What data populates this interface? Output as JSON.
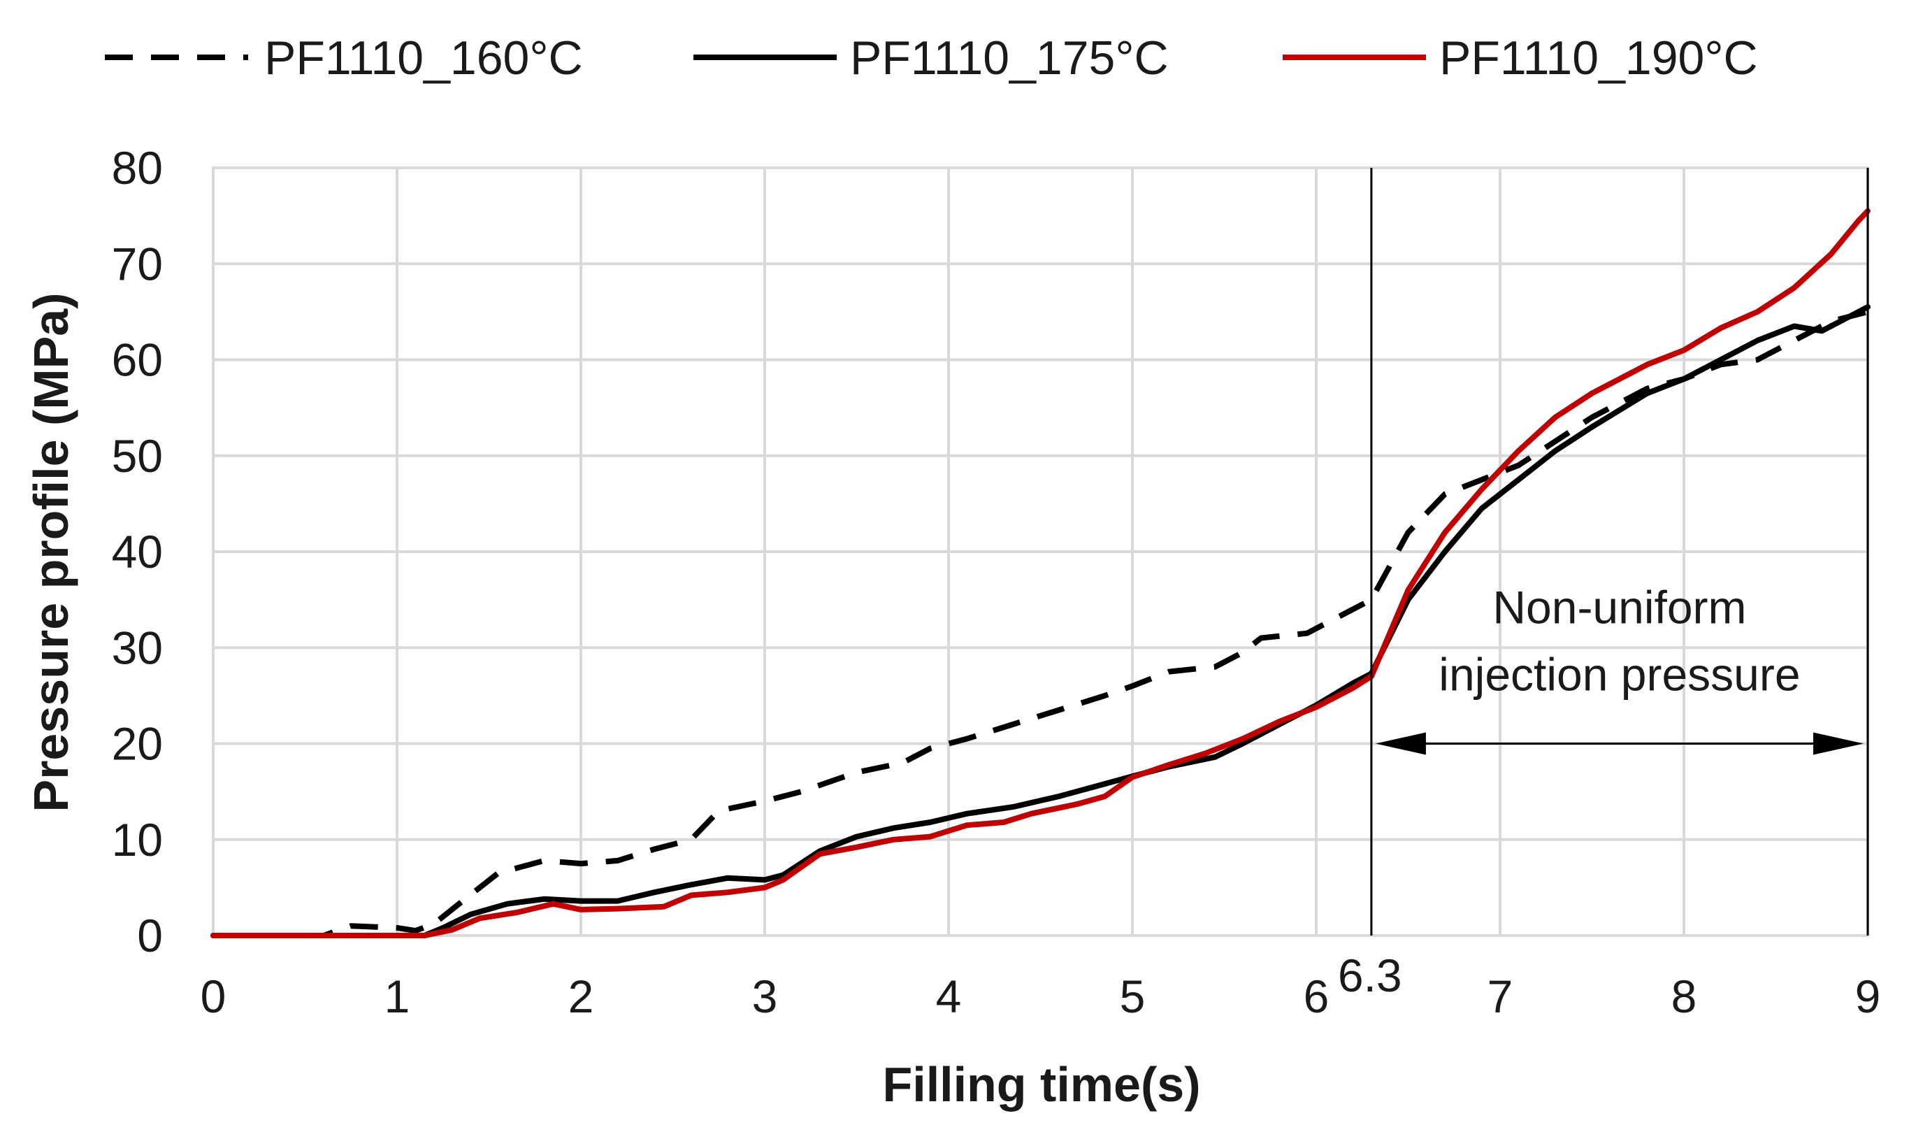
{
  "chart_data": {
    "type": "line",
    "title": "",
    "xlabel": "Filling time(s)",
    "ylabel": "Pressure profile (MPa)",
    "xlim": [
      0,
      9
    ],
    "ylim": [
      0,
      80
    ],
    "x_ticks": [
      0,
      1,
      2,
      3,
      4,
      5,
      6,
      7,
      8,
      9
    ],
    "y_ticks": [
      0,
      10,
      20,
      30,
      40,
      50,
      60,
      70,
      80
    ],
    "legend_position": "top",
    "series": [
      {
        "name": "PF1110_160°C",
        "style": "dashed",
        "color": "#000000",
        "points": [
          [
            0,
            0
          ],
          [
            0.6,
            0
          ],
          [
            0.75,
            1
          ],
          [
            1.0,
            0.8
          ],
          [
            1.1,
            0.5
          ],
          [
            1.2,
            1.2
          ],
          [
            1.35,
            3.5
          ],
          [
            1.55,
            6.5
          ],
          [
            1.8,
            7.8
          ],
          [
            2.0,
            7.5
          ],
          [
            2.2,
            7.8
          ],
          [
            2.4,
            9
          ],
          [
            2.6,
            10
          ],
          [
            2.75,
            13
          ],
          [
            3.0,
            14
          ],
          [
            3.2,
            15
          ],
          [
            3.5,
            17
          ],
          [
            3.75,
            18
          ],
          [
            3.9,
            19.5
          ],
          [
            4.1,
            20.5
          ],
          [
            4.35,
            22
          ],
          [
            4.6,
            23.5
          ],
          [
            4.85,
            25
          ],
          [
            5.0,
            26
          ],
          [
            5.2,
            27.5
          ],
          [
            5.45,
            28
          ],
          [
            5.6,
            29.5
          ],
          [
            5.7,
            31
          ],
          [
            5.95,
            31.5
          ],
          [
            6.1,
            33
          ],
          [
            6.3,
            35
          ],
          [
            6.5,
            42
          ],
          [
            6.7,
            46
          ],
          [
            6.9,
            47.5
          ],
          [
            7.1,
            49
          ],
          [
            7.3,
            51.5
          ],
          [
            7.5,
            54
          ],
          [
            7.8,
            57
          ],
          [
            8.0,
            58
          ],
          [
            8.2,
            59.5
          ],
          [
            8.4,
            60
          ],
          [
            8.6,
            62
          ],
          [
            8.8,
            64
          ],
          [
            9.0,
            65
          ]
        ]
      },
      {
        "name": "PF1110_175°C",
        "style": "solid",
        "color": "#000000",
        "points": [
          [
            0,
            0
          ],
          [
            1.15,
            0
          ],
          [
            1.25,
            0.8
          ],
          [
            1.4,
            2.2
          ],
          [
            1.6,
            3.3
          ],
          [
            1.8,
            3.8
          ],
          [
            2.0,
            3.6
          ],
          [
            2.2,
            3.6
          ],
          [
            2.4,
            4.5
          ],
          [
            2.6,
            5.3
          ],
          [
            2.8,
            6
          ],
          [
            3.0,
            5.8
          ],
          [
            3.1,
            6.3
          ],
          [
            3.3,
            8.8
          ],
          [
            3.5,
            10.3
          ],
          [
            3.7,
            11.2
          ],
          [
            3.9,
            11.8
          ],
          [
            4.1,
            12.7
          ],
          [
            4.35,
            13.4
          ],
          [
            4.6,
            14.5
          ],
          [
            4.85,
            15.8
          ],
          [
            5.0,
            16.6
          ],
          [
            5.2,
            17.6
          ],
          [
            5.45,
            18.6
          ],
          [
            5.6,
            20
          ],
          [
            5.8,
            22
          ],
          [
            6.0,
            24
          ],
          [
            6.2,
            26.3
          ],
          [
            6.3,
            27.3
          ],
          [
            6.5,
            35
          ],
          [
            6.7,
            40
          ],
          [
            6.9,
            44.5
          ],
          [
            7.1,
            47.5
          ],
          [
            7.3,
            50.5
          ],
          [
            7.5,
            53
          ],
          [
            7.8,
            56.5
          ],
          [
            8.0,
            58
          ],
          [
            8.2,
            60
          ],
          [
            8.4,
            62
          ],
          [
            8.6,
            63.5
          ],
          [
            8.75,
            63
          ],
          [
            9.0,
            65.5
          ]
        ]
      },
      {
        "name": "PF1110_190°C",
        "style": "solid",
        "color": "#c00000",
        "points": [
          [
            0,
            0
          ],
          [
            1.15,
            0
          ],
          [
            1.3,
            0.6
          ],
          [
            1.45,
            1.8
          ],
          [
            1.65,
            2.4
          ],
          [
            1.85,
            3.3
          ],
          [
            2.0,
            2.7
          ],
          [
            2.2,
            2.8
          ],
          [
            2.45,
            3
          ],
          [
            2.6,
            4.2
          ],
          [
            2.8,
            4.5
          ],
          [
            3.0,
            5
          ],
          [
            3.1,
            5.8
          ],
          [
            3.3,
            8.5
          ],
          [
            3.5,
            9.2
          ],
          [
            3.7,
            10
          ],
          [
            3.9,
            10.3
          ],
          [
            4.1,
            11.5
          ],
          [
            4.3,
            11.8
          ],
          [
            4.45,
            12.7
          ],
          [
            4.7,
            13.7
          ],
          [
            4.85,
            14.5
          ],
          [
            5.0,
            16.5
          ],
          [
            5.2,
            17.8
          ],
          [
            5.4,
            19
          ],
          [
            5.6,
            20.5
          ],
          [
            5.8,
            22.3
          ],
          [
            6.0,
            23.8
          ],
          [
            6.2,
            25.8
          ],
          [
            6.3,
            27
          ],
          [
            6.5,
            36
          ],
          [
            6.7,
            42
          ],
          [
            6.9,
            46.5
          ],
          [
            7.1,
            50.5
          ],
          [
            7.3,
            54
          ],
          [
            7.5,
            56.5
          ],
          [
            7.8,
            59.5
          ],
          [
            8.0,
            61
          ],
          [
            8.2,
            63.3
          ],
          [
            8.4,
            65
          ],
          [
            8.6,
            67.5
          ],
          [
            8.8,
            71
          ],
          [
            8.95,
            74.5
          ],
          [
            9.0,
            75.5
          ]
        ]
      }
    ],
    "annotations": {
      "vline_x": 6.3,
      "vline_label": "6.3",
      "arrow_from": 6.3,
      "arrow_to": 9,
      "arrow_y": 20,
      "text_line1": "Non-uniform",
      "text_line2": "injection pressure"
    }
  }
}
